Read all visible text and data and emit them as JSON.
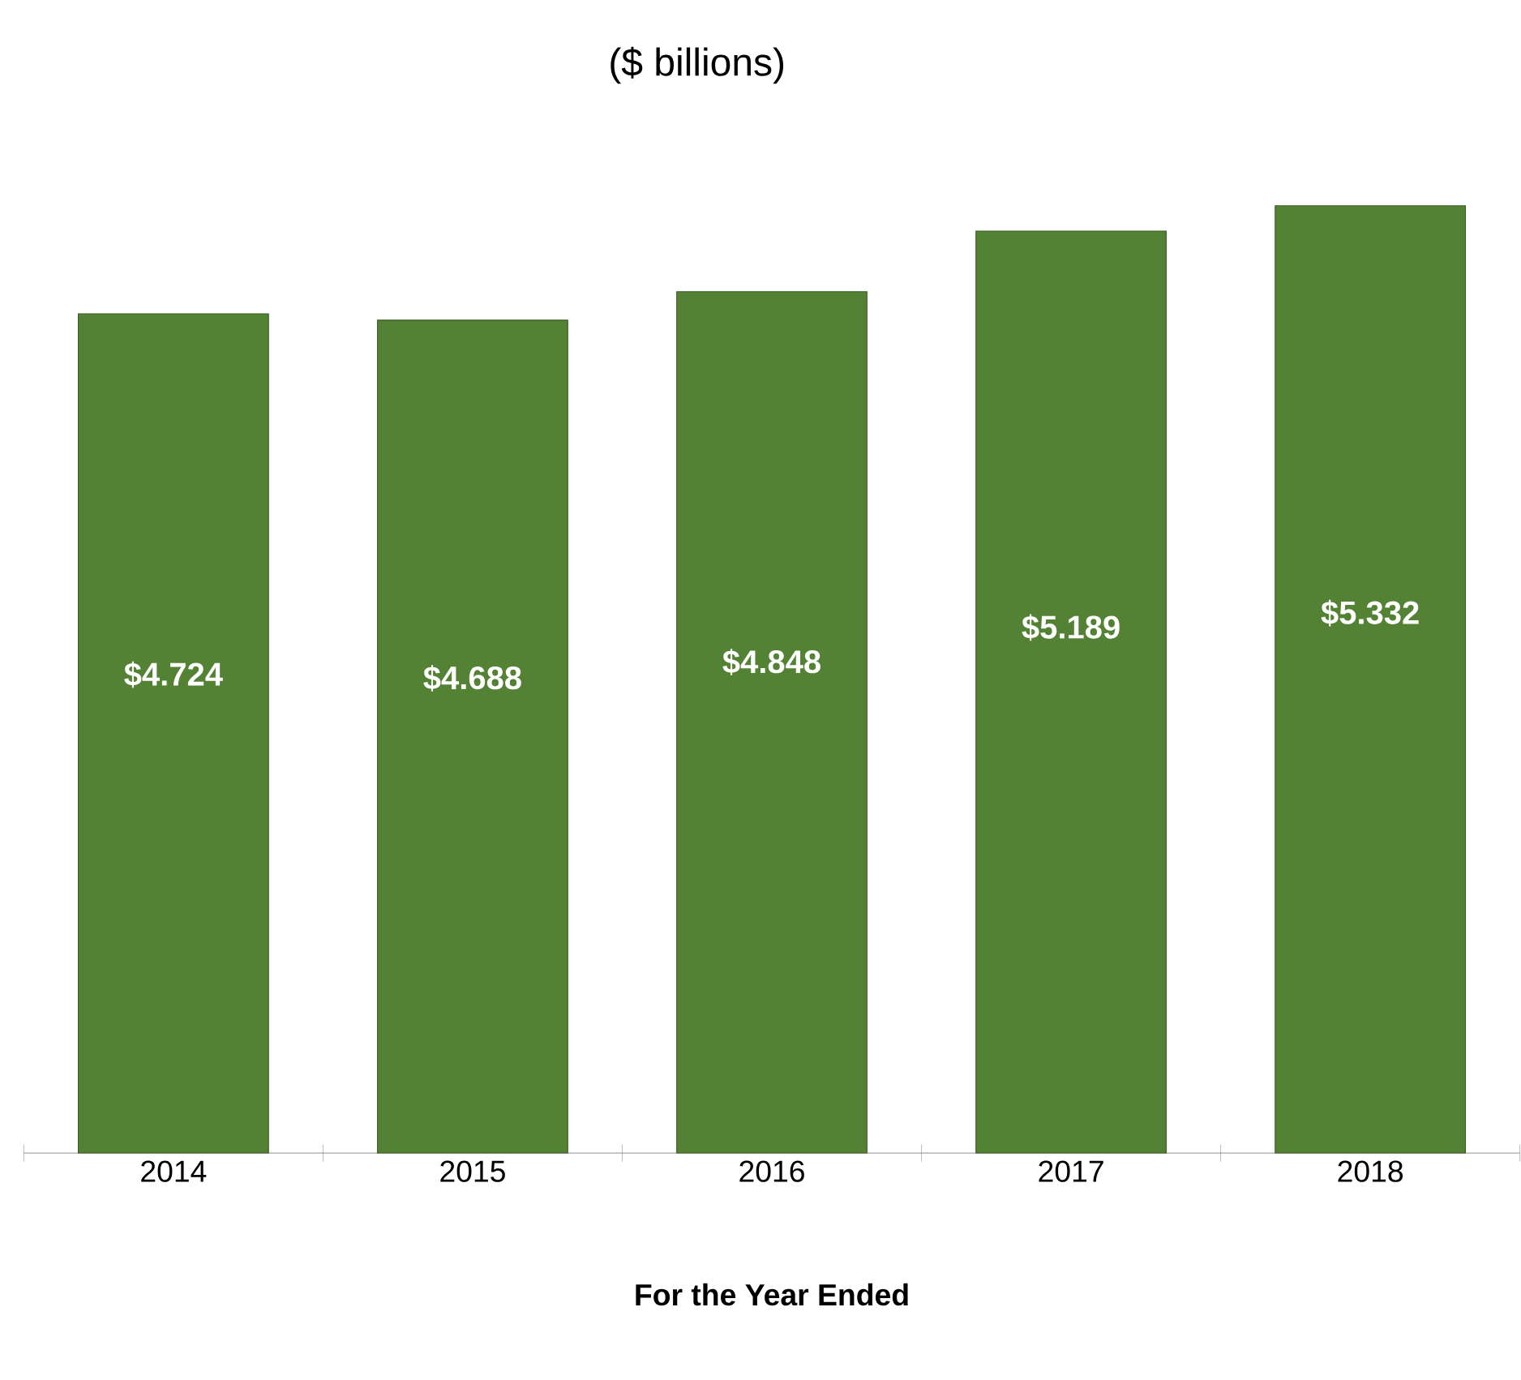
{
  "chart_data": {
    "type": "bar",
    "title": "($ billions)",
    "xlabel": "For the Year Ended",
    "categories": [
      "2014",
      "2015",
      "2016",
      "2017",
      "2018"
    ],
    "values": [
      4.724,
      4.688,
      4.848,
      5.189,
      5.332
    ],
    "value_labels": [
      "$4.724",
      "$4.688",
      "$4.848",
      "$5.189",
      "$5.332"
    ],
    "color": "#548235"
  }
}
